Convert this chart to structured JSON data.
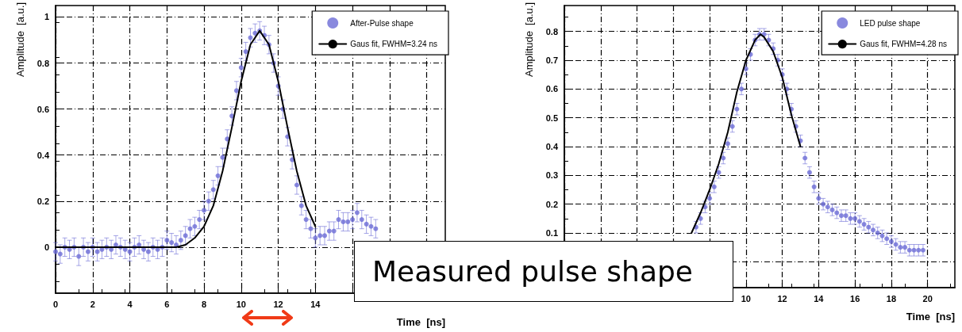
{
  "chart_data": [
    {
      "type": "scatter",
      "xlabel": "Time  [ns]",
      "ylabel": "Amplitude  [a.u.]",
      "annotations": [
        "Measured pulse shape"
      ],
      "xlim": [
        0,
        21
      ],
      "ylim": [
        -0.2,
        1.05
      ],
      "xticks": [
        0,
        2,
        4,
        6,
        8,
        10,
        12,
        14,
        {
          "value": 16,
          "label": null
        },
        {
          "value": 18,
          "label": null
        },
        {
          "value": 20,
          "label": null
        }
      ],
      "yticks": [
        0,
        0.2,
        0.4,
        0.6,
        0.8,
        1
      ],
      "grid": true,
      "legend": "top right",
      "line_style": "solid",
      "series": [
        {
          "name": "After-Pulse shape",
          "color": "#6b6bd6",
          "marker": "circle",
          "x": [
            0,
            0.25,
            0.5,
            0.75,
            1,
            1.25,
            1.5,
            1.75,
            2,
            2.25,
            2.5,
            2.75,
            3,
            3.25,
            3.5,
            3.75,
            4,
            4.25,
            4.5,
            4.75,
            5,
            5.25,
            5.5,
            5.75,
            6,
            6.25,
            6.5,
            6.75,
            7,
            7.25,
            7.5,
            7.75,
            8,
            8.25,
            8.5,
            8.75,
            9,
            9.25,
            9.5,
            9.75,
            10,
            10.25,
            10.5,
            10.75,
            11,
            11.25,
            11.5,
            11.75,
            12,
            12.25,
            12.5,
            12.75,
            13,
            13.25,
            13.5,
            13.75,
            14,
            14.25,
            14.5,
            14.75,
            15,
            15.25,
            15.5,
            15.75,
            16,
            16.25,
            16.5,
            16.75,
            17,
            17.25
          ],
          "values": [
            -0.02,
            -0.03,
            0,
            -0.01,
            0,
            -0.04,
            0,
            -0.02,
            0,
            -0.02,
            -0.01,
            0,
            -0.01,
            0.01,
            0,
            -0.01,
            -0.02,
            0,
            0.01,
            -0.01,
            -0.02,
            0,
            -0.01,
            0,
            0.03,
            0.02,
            0.01,
            0.03,
            0.05,
            0.08,
            0.09,
            0.12,
            0.16,
            0.2,
            0.25,
            0.31,
            0.39,
            0.47,
            0.57,
            0.68,
            0.78,
            0.85,
            0.91,
            0.93,
            0.94,
            0.92,
            0.88,
            0.8,
            0.7,
            0.6,
            0.48,
            0.38,
            0.27,
            0.18,
            0.12,
            0.08,
            0.04,
            0.05,
            0.05,
            0.07,
            0.07,
            0.12,
            0.11,
            0.11,
            0.12,
            0.15,
            0.12,
            0.1,
            0.09,
            0.08
          ],
          "errors": [
            0.04,
            0.04,
            0.04,
            0.04,
            0.04,
            0.04,
            0.04,
            0.04,
            0.04,
            0.04,
            0.04,
            0.04,
            0.04,
            0.04,
            0.04,
            0.04,
            0.04,
            0.04,
            0.04,
            0.04,
            0.04,
            0.04,
            0.04,
            0.04,
            0.04,
            0.04,
            0.04,
            0.04,
            0.04,
            0.04,
            0.04,
            0.04,
            0.04,
            0.04,
            0.04,
            0.04,
            0.04,
            0.04,
            0.04,
            0.04,
            0.04,
            0.04,
            0.04,
            0.04,
            0.04,
            0.04,
            0.04,
            0.04,
            0.04,
            0.04,
            0.04,
            0.04,
            0.04,
            0.04,
            0.04,
            0.04,
            0.04,
            0.04,
            0.04,
            0.04,
            0.04,
            0.04,
            0.04,
            0.04,
            0.04,
            0.04,
            0.04,
            0.04,
            0.04,
            0.04
          ]
        },
        {
          "name": "Gaus fit, FWHM=3.24 ns",
          "color": "#000000",
          "type": "line",
          "marker": "none",
          "x": [
            0,
            1,
            2,
            3,
            4,
            5,
            6,
            6.5,
            7,
            7.5,
            8,
            8.5,
            9,
            9.5,
            10,
            10.5,
            11,
            11.5,
            12,
            12.5,
            13,
            13.5,
            14
          ],
          "values": [
            0,
            0,
            0,
            0,
            0,
            0,
            0,
            0,
            0.01,
            0.04,
            0.09,
            0.18,
            0.33,
            0.52,
            0.72,
            0.88,
            0.94,
            0.88,
            0.72,
            0.52,
            0.33,
            0.18,
            0.09
          ]
        }
      ]
    },
    {
      "type": "scatter",
      "xlabel": "Time  [ns]",
      "ylabel": "Amplitude  [a.u.]",
      "xlim": [
        0,
        21.5
      ],
      "ylim": [
        -0.09,
        0.89
      ],
      "xticks": [
        {
          "value": 0,
          "label": null
        },
        {
          "value": 2,
          "label": null
        },
        {
          "value": 4,
          "label": null
        },
        {
          "value": 6,
          "label": null
        },
        {
          "value": 8,
          "label": null
        },
        10,
        12,
        14,
        16,
        18,
        20
      ],
      "yticks": [
        {
          "value": 0,
          "label": null
        },
        0.1,
        0.2,
        0.3,
        0.4,
        0.5,
        0.6,
        0.7,
        0.8
      ],
      "grid": true,
      "legend": "top right",
      "line_style": "solid",
      "series": [
        {
          "name": "LED pulse shape",
          "color": "#6b6bd6",
          "marker": "circle",
          "x": [
            7.25,
            7.5,
            7.75,
            8,
            8.25,
            8.5,
            8.75,
            9,
            9.25,
            9.5,
            9.75,
            10,
            10.25,
            10.5,
            10.75,
            11,
            11.25,
            11.5,
            11.75,
            12,
            12.25,
            12.5,
            12.75,
            13,
            13.25,
            13.5,
            13.75,
            14,
            14.25,
            14.5,
            14.75,
            15,
            15.25,
            15.5,
            15.75,
            16,
            16.25,
            16.5,
            16.75,
            17,
            17.25,
            17.5,
            17.75,
            18,
            18.25,
            18.5,
            18.75,
            19,
            19.25,
            19.5,
            19.75
          ],
          "values": [
            0.12,
            0.15,
            0.19,
            0.22,
            0.26,
            0.31,
            0.36,
            0.41,
            0.47,
            0.53,
            0.6,
            0.67,
            0.72,
            0.77,
            0.79,
            0.79,
            0.77,
            0.74,
            0.7,
            0.65,
            0.6,
            0.53,
            0.47,
            0.42,
            0.36,
            0.31,
            0.26,
            0.22,
            0.2,
            0.19,
            0.18,
            0.17,
            0.16,
            0.16,
            0.15,
            0.15,
            0.14,
            0.13,
            0.12,
            0.11,
            0.1,
            0.09,
            0.08,
            0.07,
            0.06,
            0.05,
            0.05,
            0.04,
            0.04,
            0.04,
            0.04
          ],
          "errors": [
            0.02,
            0.02,
            0.02,
            0.02,
            0.02,
            0.02,
            0.02,
            0.02,
            0.02,
            0.02,
            0.02,
            0.02,
            0.02,
            0.02,
            0.02,
            0.02,
            0.02,
            0.02,
            0.02,
            0.02,
            0.02,
            0.02,
            0.02,
            0.02,
            0.02,
            0.02,
            0.02,
            0.02,
            0.02,
            0.02,
            0.02,
            0.02,
            0.02,
            0.02,
            0.02,
            0.02,
            0.02,
            0.02,
            0.02,
            0.02,
            0.02,
            0.02,
            0.02,
            0.02,
            0.02,
            0.02,
            0.02,
            0.02,
            0.02,
            0.02,
            0.02
          ]
        },
        {
          "name": "Gaus fit, FWHM=4.28 ns",
          "color": "#000000",
          "type": "line",
          "marker": "none",
          "x": [
            7,
            7.5,
            8,
            8.5,
            9,
            9.5,
            10,
            10.5,
            10.8,
            11,
            11.5,
            12,
            12.5,
            13
          ],
          "values": [
            0.1,
            0.17,
            0.25,
            0.34,
            0.45,
            0.59,
            0.7,
            0.77,
            0.79,
            0.78,
            0.73,
            0.64,
            0.51,
            0.4
          ]
        }
      ]
    }
  ]
}
